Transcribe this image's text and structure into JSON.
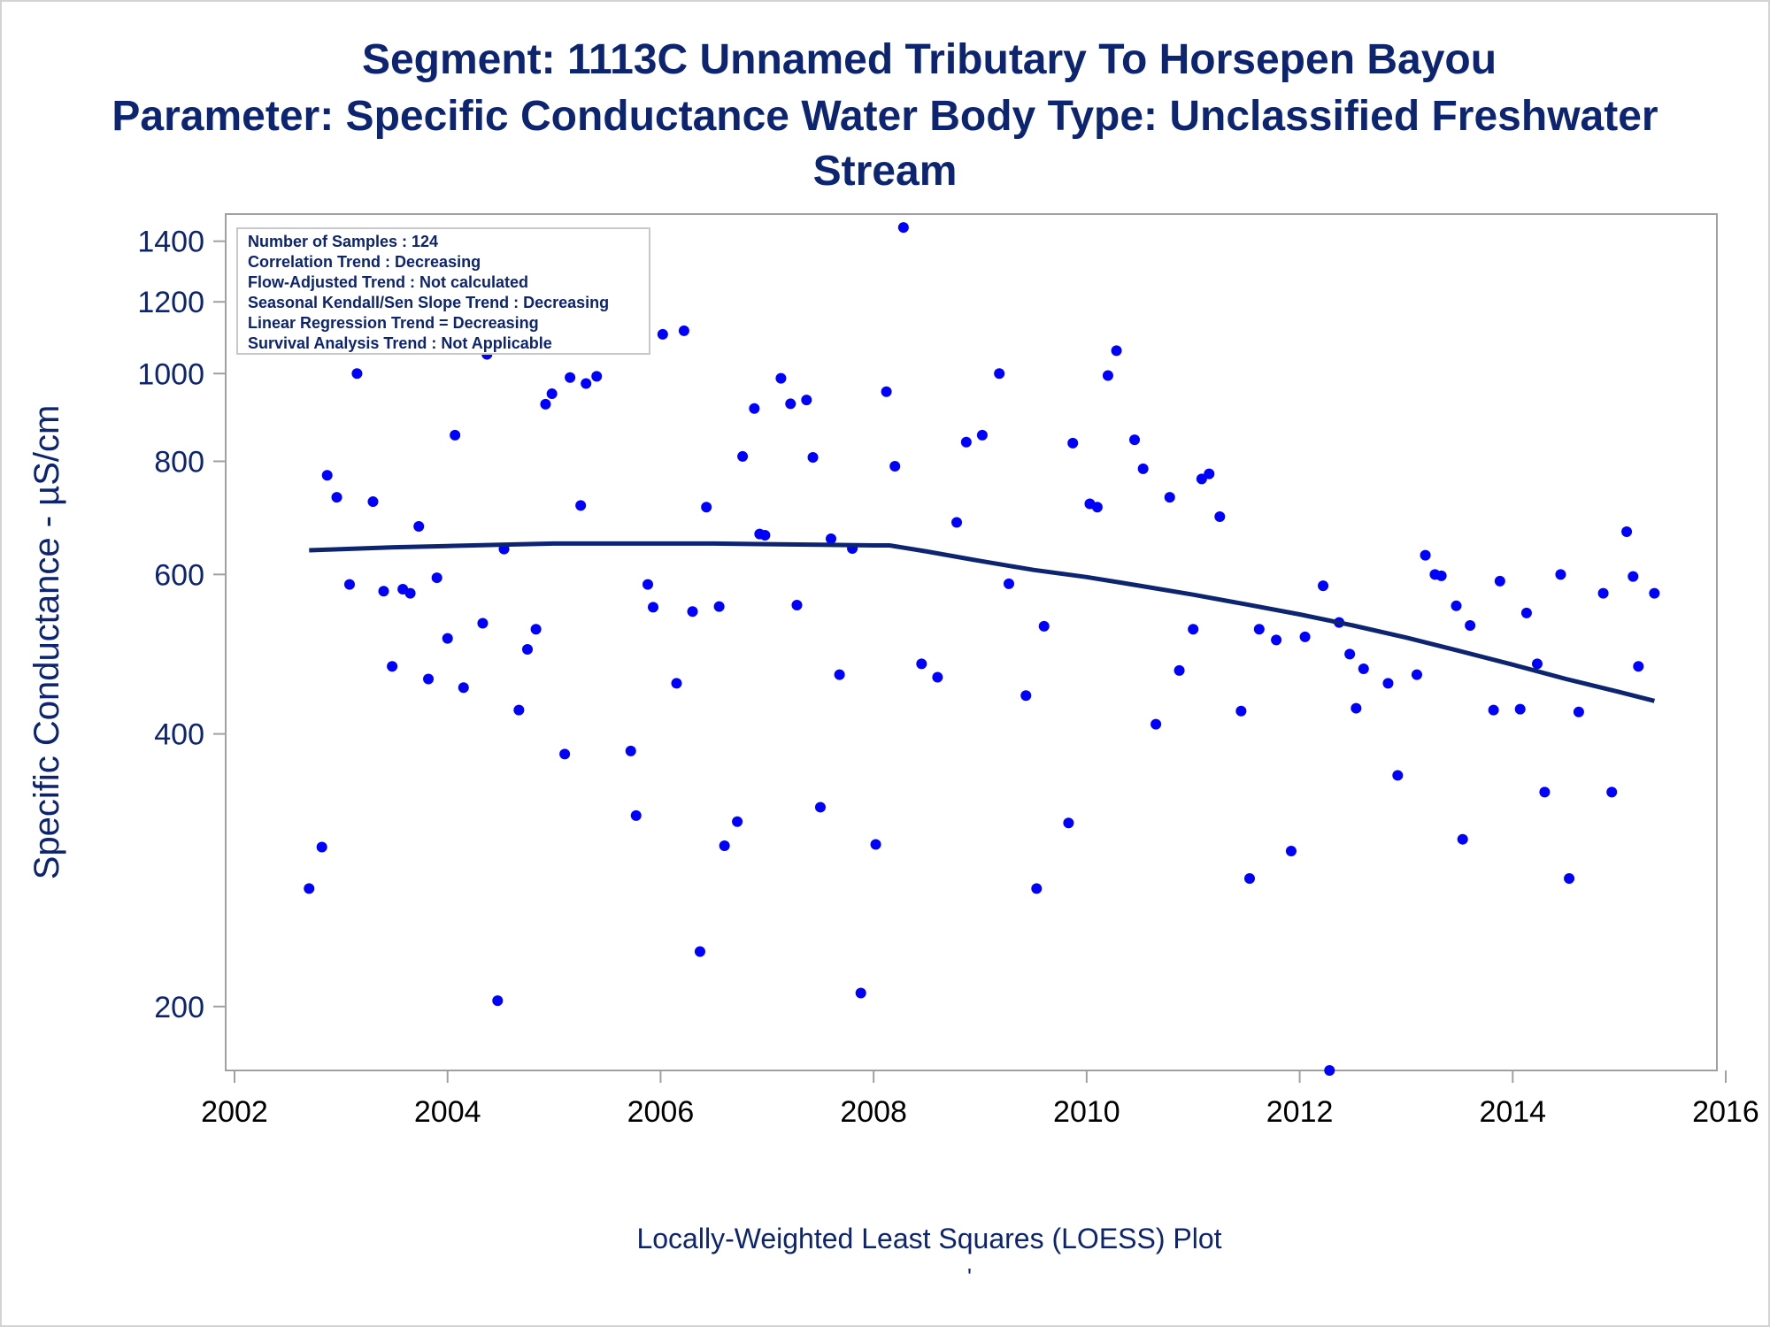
{
  "titles": {
    "line1": "Segment: 1113C  Unnamed Tributary To Horsepen Bayou",
    "line2": "Parameter: Specific Conductance   Water Body Type: Unclassified Freshwater",
    "line3": "Stream"
  },
  "footnote": "Locally-Weighted Least Squares (LOESS) Plot",
  "footnote_mark": "'",
  "colors": {
    "text": "#0d2470",
    "points": "#0000ff",
    "line": "#0d2470",
    "frame": "#a0a0a0"
  },
  "chart_data": {
    "type": "scatter",
    "ylabel": "Specific Conductance -  µS/cm",
    "xlabel": "",
    "y_scale": "log",
    "xlim": [
      2002,
      2016
    ],
    "ylim": [
      170,
      1500
    ],
    "x_ticks": [
      2002,
      2004,
      2006,
      2008,
      2010,
      2012,
      2014,
      2016
    ],
    "y_ticks": [
      200,
      400,
      600,
      800,
      1000,
      1200,
      1400
    ],
    "grid": false,
    "inset": {
      "lines": [
        "Number of Samples : 124",
        "Correlation Trend : Decreasing",
        "Flow-Adjusted Trend : Not calculated",
        "Seasonal Kendall/Sen Slope Trend : Decreasing",
        "Linear Regression Trend = Decreasing",
        "Survival Analysis Trend : Not Applicable"
      ],
      "placement": "top-left"
    },
    "series": [
      {
        "type": "scatter",
        "points": [
          [
            2002.7,
            270
          ],
          [
            2002.82,
            300
          ],
          [
            2002.87,
            772
          ],
          [
            2002.96,
            730
          ],
          [
            2003.08,
            585
          ],
          [
            2003.15,
            1000
          ],
          [
            2003.3,
            722
          ],
          [
            2003.4,
            575
          ],
          [
            2003.48,
            475
          ],
          [
            2003.58,
            578
          ],
          [
            2003.65,
            572
          ],
          [
            2003.73,
            678
          ],
          [
            2003.82,
            460
          ],
          [
            2003.9,
            595
          ],
          [
            2004.0,
            510
          ],
          [
            2004.07,
            855
          ],
          [
            2004.15,
            450
          ],
          [
            2004.22,
            1150
          ],
          [
            2004.33,
            530
          ],
          [
            2004.37,
            1050
          ],
          [
            2004.47,
            203
          ],
          [
            2004.53,
            640
          ],
          [
            2004.67,
            425
          ],
          [
            2004.75,
            496
          ],
          [
            2004.83,
            522
          ],
          [
            2004.92,
            925
          ],
          [
            2004.98,
            950
          ],
          [
            2005.1,
            380
          ],
          [
            2005.15,
            990
          ],
          [
            2005.25,
            715
          ],
          [
            2005.3,
            975
          ],
          [
            2005.4,
            993
          ],
          [
            2005.72,
            383
          ],
          [
            2005.77,
            325
          ],
          [
            2005.88,
            585
          ],
          [
            2005.93,
            552
          ],
          [
            2006.02,
            1105
          ],
          [
            2006.15,
            455
          ],
          [
            2006.22,
            1115
          ],
          [
            2006.3,
            546
          ],
          [
            2006.37,
            230
          ],
          [
            2006.43,
            712
          ],
          [
            2006.55,
            553
          ],
          [
            2006.6,
            301
          ],
          [
            2006.72,
            320
          ],
          [
            2006.77,
            810
          ],
          [
            2006.88,
            915
          ],
          [
            2006.93,
            665
          ],
          [
            2006.98,
            663
          ],
          [
            2007.13,
            988
          ],
          [
            2007.22,
            926
          ],
          [
            2007.28,
            555
          ],
          [
            2007.37,
            935
          ],
          [
            2007.43,
            808
          ],
          [
            2007.5,
            332
          ],
          [
            2007.6,
            657
          ],
          [
            2007.68,
            465
          ],
          [
            2007.8,
            641
          ],
          [
            2007.88,
            207
          ],
          [
            2008.02,
            302
          ],
          [
            2008.12,
            955
          ],
          [
            2008.2,
            790
          ],
          [
            2008.28,
            1450
          ],
          [
            2008.45,
            478
          ],
          [
            2008.6,
            462
          ],
          [
            2008.78,
            685
          ],
          [
            2008.87,
            840
          ],
          [
            2009.02,
            855
          ],
          [
            2009.18,
            1000
          ],
          [
            2009.27,
            586
          ],
          [
            2009.43,
            441
          ],
          [
            2009.53,
            270
          ],
          [
            2009.6,
            526
          ],
          [
            2009.83,
            319
          ],
          [
            2009.87,
            838
          ],
          [
            2010.03,
            718
          ],
          [
            2010.1,
            712
          ],
          [
            2010.2,
            995
          ],
          [
            2010.28,
            1060
          ],
          [
            2010.45,
            845
          ],
          [
            2010.53,
            785
          ],
          [
            2010.65,
            410
          ],
          [
            2010.78,
            730
          ],
          [
            2010.87,
            470
          ],
          [
            2011.0,
            522
          ],
          [
            2011.08,
            765
          ],
          [
            2011.15,
            775
          ],
          [
            2011.25,
            695
          ],
          [
            2011.45,
            424
          ],
          [
            2011.53,
            277
          ],
          [
            2011.62,
            522
          ],
          [
            2011.78,
            508
          ],
          [
            2011.92,
            297
          ],
          [
            2012.05,
            512
          ],
          [
            2012.22,
            583
          ],
          [
            2012.28,
            170
          ],
          [
            2012.37,
            531
          ],
          [
            2012.47,
            490
          ],
          [
            2012.53,
            427
          ],
          [
            2012.6,
            472
          ],
          [
            2012.83,
            455
          ],
          [
            2012.92,
            360
          ],
          [
            2013.1,
            465
          ],
          [
            2013.18,
            630
          ],
          [
            2013.27,
            600
          ],
          [
            2013.33,
            598
          ],
          [
            2013.47,
            554
          ],
          [
            2013.53,
            306
          ],
          [
            2013.6,
            527
          ],
          [
            2013.82,
            425
          ],
          [
            2013.88,
            590
          ],
          [
            2014.07,
            426
          ],
          [
            2014.13,
            544
          ],
          [
            2014.23,
            478
          ],
          [
            2014.3,
            345
          ],
          [
            2014.45,
            600
          ],
          [
            2014.53,
            277
          ],
          [
            2014.62,
            423
          ],
          [
            2014.85,
            572
          ],
          [
            2014.93,
            345
          ],
          [
            2015.07,
            669
          ],
          [
            2015.13,
            597
          ],
          [
            2015.18,
            475
          ],
          [
            2015.33,
            572
          ]
        ]
      },
      {
        "type": "line",
        "points": [
          [
            2002.7,
            638
          ],
          [
            2003.0,
            640
          ],
          [
            2003.5,
            643
          ],
          [
            2004.0,
            645
          ],
          [
            2004.5,
            647
          ],
          [
            2005.0,
            649
          ],
          [
            2005.5,
            649
          ],
          [
            2006.0,
            649
          ],
          [
            2006.5,
            649
          ],
          [
            2007.0,
            648
          ],
          [
            2007.5,
            647
          ],
          [
            2008.0,
            646
          ],
          [
            2008.15,
            646
          ],
          [
            2008.5,
            636
          ],
          [
            2009.0,
            621
          ],
          [
            2009.5,
            607
          ],
          [
            2010.0,
            596
          ],
          [
            2010.5,
            583
          ],
          [
            2011.0,
            570
          ],
          [
            2011.5,
            556
          ],
          [
            2012.0,
            542
          ],
          [
            2012.5,
            527
          ],
          [
            2013.0,
            511
          ],
          [
            2013.5,
            494
          ],
          [
            2014.0,
            477
          ],
          [
            2014.5,
            460
          ],
          [
            2015.0,
            445
          ],
          [
            2015.33,
            435
          ]
        ]
      }
    ]
  }
}
